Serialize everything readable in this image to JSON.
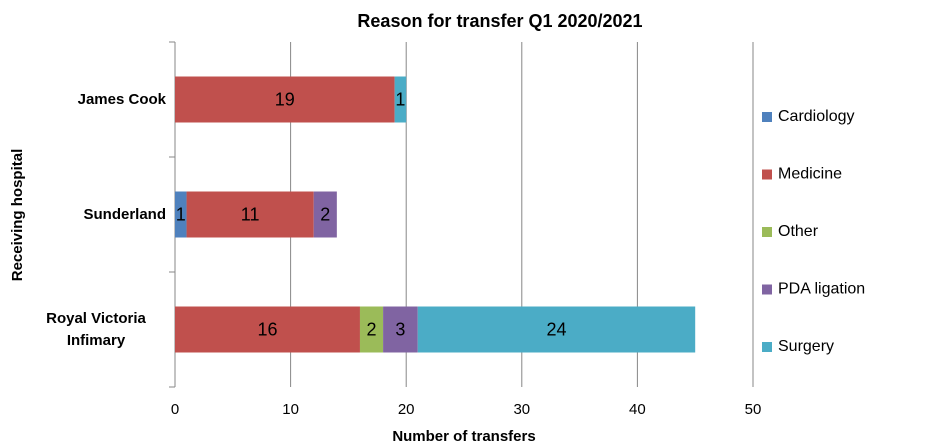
{
  "chart_data": {
    "type": "stacked-bar-horizontal",
    "title": "Reason for transfer Q1 2020/2021",
    "x_label": "Number of transfers",
    "y_label": "Receiving hospital",
    "categories": [
      "James Cook",
      "Sunderland",
      "Royal Victoria Infimary"
    ],
    "series": [
      {
        "name": "Cardiology",
        "color": "#4f81bd",
        "values": [
          0,
          1,
          0
        ]
      },
      {
        "name": "Medicine",
        "color": "#c0504d",
        "values": [
          19,
          11,
          16
        ]
      },
      {
        "name": "Other",
        "color": "#9bbb59",
        "values": [
          0,
          0,
          2
        ]
      },
      {
        "name": "PDA ligation",
        "color": "#8064a2",
        "values": [
          0,
          2,
          3
        ]
      },
      {
        "name": "Surgery",
        "color": "#4bacc6",
        "values": [
          1,
          0,
          24
        ]
      }
    ],
    "xlim": [
      0,
      50
    ],
    "xticks": [
      0,
      10,
      20,
      30,
      40,
      50
    ],
    "grid": true,
    "legend": "right"
  }
}
